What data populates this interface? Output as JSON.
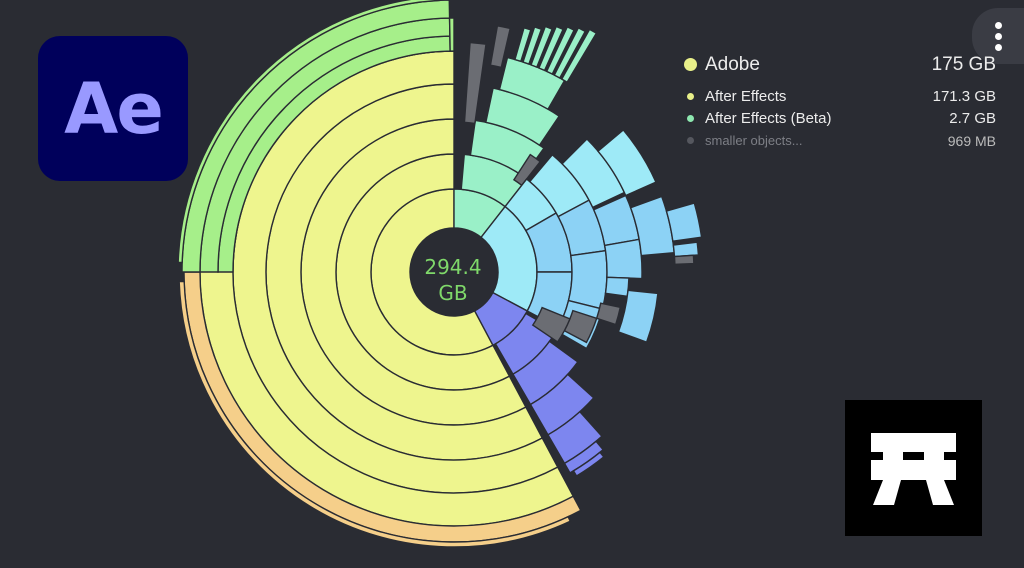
{
  "app": {
    "center_total": [
      "294.4",
      "GB"
    ],
    "more_button_icon": "more-vertical-icon"
  },
  "ae_logo": {
    "text": "Ae",
    "color": "#9999ff",
    "background": "#00005b"
  },
  "legend": {
    "head": {
      "label": "Adobe",
      "value": "175 GB",
      "color": "#e8f08a"
    },
    "items": [
      {
        "label": "After Effects",
        "value": "171.3 GB",
        "color": "#e8f08a"
      },
      {
        "label": "After Effects (Beta)",
        "value": "2.7 GB",
        "color": "#8ee8b0"
      },
      {
        "label": "smaller objects...",
        "value": "969    MB",
        "color": "#55575e"
      }
    ]
  },
  "torii_logo": {
    "icon": "torii-gate-icon"
  },
  "colors": {
    "background": "#2a2c33",
    "yellow": "#eef58e",
    "orange": "#f5cf8a",
    "green": "#a6ef8a",
    "mint": "#9af0c8",
    "cyan": "#9eeaf7",
    "sky": "#8cd2f5",
    "blue": "#7d86ef",
    "gray": "#6b6d73"
  }
}
